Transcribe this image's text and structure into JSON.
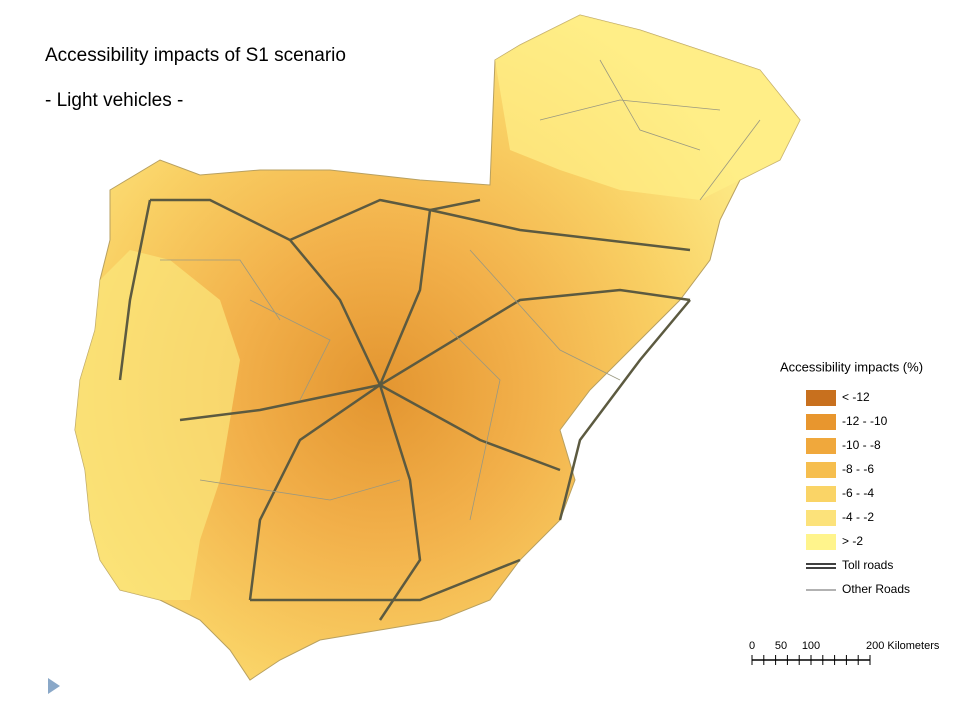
{
  "title": "Accessibility impacts of S1 scenario",
  "subtitle": "- Light vehicles -",
  "legend": {
    "title": "Accessibility impacts (%)",
    "items": [
      {
        "label": "< -12",
        "color": "#c8701e"
      },
      {
        "label": "-12 - -10",
        "color": "#e8962e"
      },
      {
        "label": "-10 - -8",
        "color": "#f0a83c"
      },
      {
        "label": "-8 - -6",
        "color": "#f6be4e"
      },
      {
        "label": "-6 - -4",
        "color": "#fad466"
      },
      {
        "label": "-4 - -2",
        "color": "#fce27a"
      },
      {
        "label": "> -2",
        "color": "#fff48c"
      }
    ],
    "lines": [
      {
        "label": "Toll roads"
      },
      {
        "label": "Other Roads"
      }
    ]
  },
  "scale": {
    "labels": [
      "0",
      "50",
      "100",
      "200 Kilometers"
    ]
  }
}
